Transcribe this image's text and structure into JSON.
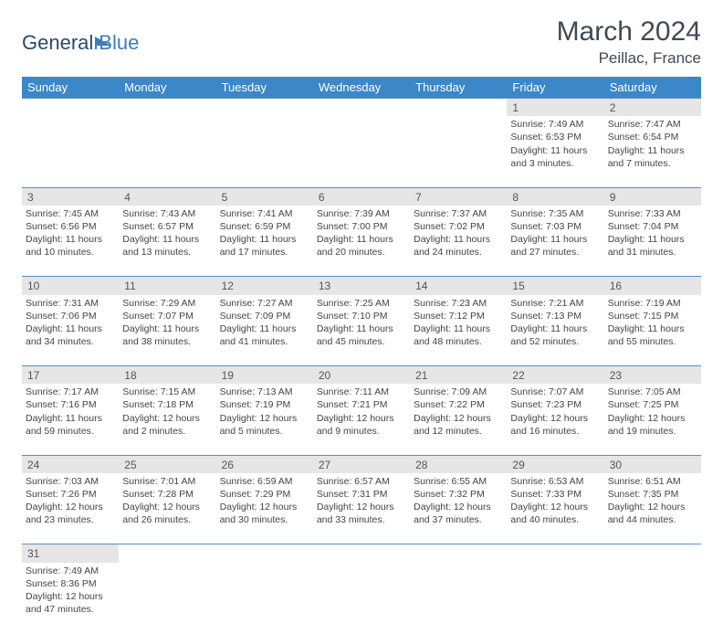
{
  "logo": {
    "text1": "General",
    "text2": "Blue",
    "color1": "#2b4a6b",
    "color2": "#3b7dbf"
  },
  "header": {
    "month_title": "March 2024",
    "location": "Peillac, France"
  },
  "colors": {
    "header_bg": "#3b87c8",
    "header_text": "#ffffff",
    "daynum_bg": "#e6e6e6",
    "row_border": "#5a8fc4",
    "body_text": "#444444",
    "page_bg": "#ffffff"
  },
  "typography": {
    "title_fontsize": 30,
    "location_fontsize": 17,
    "dayheader_fontsize": 13,
    "cell_fontsize": 10.5
  },
  "calendar": {
    "type": "table",
    "day_names": [
      "Sunday",
      "Monday",
      "Tuesday",
      "Wednesday",
      "Thursday",
      "Friday",
      "Saturday"
    ],
    "weeks": [
      [
        null,
        null,
        null,
        null,
        null,
        {
          "n": "1",
          "sunrise": "Sunrise: 7:49 AM",
          "sunset": "Sunset: 6:53 PM",
          "daylight": "Daylight: 11 hours and 3 minutes."
        },
        {
          "n": "2",
          "sunrise": "Sunrise: 7:47 AM",
          "sunset": "Sunset: 6:54 PM",
          "daylight": "Daylight: 11 hours and 7 minutes."
        }
      ],
      [
        {
          "n": "3",
          "sunrise": "Sunrise: 7:45 AM",
          "sunset": "Sunset: 6:56 PM",
          "daylight": "Daylight: 11 hours and 10 minutes."
        },
        {
          "n": "4",
          "sunrise": "Sunrise: 7:43 AM",
          "sunset": "Sunset: 6:57 PM",
          "daylight": "Daylight: 11 hours and 13 minutes."
        },
        {
          "n": "5",
          "sunrise": "Sunrise: 7:41 AM",
          "sunset": "Sunset: 6:59 PM",
          "daylight": "Daylight: 11 hours and 17 minutes."
        },
        {
          "n": "6",
          "sunrise": "Sunrise: 7:39 AM",
          "sunset": "Sunset: 7:00 PM",
          "daylight": "Daylight: 11 hours and 20 minutes."
        },
        {
          "n": "7",
          "sunrise": "Sunrise: 7:37 AM",
          "sunset": "Sunset: 7:02 PM",
          "daylight": "Daylight: 11 hours and 24 minutes."
        },
        {
          "n": "8",
          "sunrise": "Sunrise: 7:35 AM",
          "sunset": "Sunset: 7:03 PM",
          "daylight": "Daylight: 11 hours and 27 minutes."
        },
        {
          "n": "9",
          "sunrise": "Sunrise: 7:33 AM",
          "sunset": "Sunset: 7:04 PM",
          "daylight": "Daylight: 11 hours and 31 minutes."
        }
      ],
      [
        {
          "n": "10",
          "sunrise": "Sunrise: 7:31 AM",
          "sunset": "Sunset: 7:06 PM",
          "daylight": "Daylight: 11 hours and 34 minutes."
        },
        {
          "n": "11",
          "sunrise": "Sunrise: 7:29 AM",
          "sunset": "Sunset: 7:07 PM",
          "daylight": "Daylight: 11 hours and 38 minutes."
        },
        {
          "n": "12",
          "sunrise": "Sunrise: 7:27 AM",
          "sunset": "Sunset: 7:09 PM",
          "daylight": "Daylight: 11 hours and 41 minutes."
        },
        {
          "n": "13",
          "sunrise": "Sunrise: 7:25 AM",
          "sunset": "Sunset: 7:10 PM",
          "daylight": "Daylight: 11 hours and 45 minutes."
        },
        {
          "n": "14",
          "sunrise": "Sunrise: 7:23 AM",
          "sunset": "Sunset: 7:12 PM",
          "daylight": "Daylight: 11 hours and 48 minutes."
        },
        {
          "n": "15",
          "sunrise": "Sunrise: 7:21 AM",
          "sunset": "Sunset: 7:13 PM",
          "daylight": "Daylight: 11 hours and 52 minutes."
        },
        {
          "n": "16",
          "sunrise": "Sunrise: 7:19 AM",
          "sunset": "Sunset: 7:15 PM",
          "daylight": "Daylight: 11 hours and 55 minutes."
        }
      ],
      [
        {
          "n": "17",
          "sunrise": "Sunrise: 7:17 AM",
          "sunset": "Sunset: 7:16 PM",
          "daylight": "Daylight: 11 hours and 59 minutes."
        },
        {
          "n": "18",
          "sunrise": "Sunrise: 7:15 AM",
          "sunset": "Sunset: 7:18 PM",
          "daylight": "Daylight: 12 hours and 2 minutes."
        },
        {
          "n": "19",
          "sunrise": "Sunrise: 7:13 AM",
          "sunset": "Sunset: 7:19 PM",
          "daylight": "Daylight: 12 hours and 5 minutes."
        },
        {
          "n": "20",
          "sunrise": "Sunrise: 7:11 AM",
          "sunset": "Sunset: 7:21 PM",
          "daylight": "Daylight: 12 hours and 9 minutes."
        },
        {
          "n": "21",
          "sunrise": "Sunrise: 7:09 AM",
          "sunset": "Sunset: 7:22 PM",
          "daylight": "Daylight: 12 hours and 12 minutes."
        },
        {
          "n": "22",
          "sunrise": "Sunrise: 7:07 AM",
          "sunset": "Sunset: 7:23 PM",
          "daylight": "Daylight: 12 hours and 16 minutes."
        },
        {
          "n": "23",
          "sunrise": "Sunrise: 7:05 AM",
          "sunset": "Sunset: 7:25 PM",
          "daylight": "Daylight: 12 hours and 19 minutes."
        }
      ],
      [
        {
          "n": "24",
          "sunrise": "Sunrise: 7:03 AM",
          "sunset": "Sunset: 7:26 PM",
          "daylight": "Daylight: 12 hours and 23 minutes."
        },
        {
          "n": "25",
          "sunrise": "Sunrise: 7:01 AM",
          "sunset": "Sunset: 7:28 PM",
          "daylight": "Daylight: 12 hours and 26 minutes."
        },
        {
          "n": "26",
          "sunrise": "Sunrise: 6:59 AM",
          "sunset": "Sunset: 7:29 PM",
          "daylight": "Daylight: 12 hours and 30 minutes."
        },
        {
          "n": "27",
          "sunrise": "Sunrise: 6:57 AM",
          "sunset": "Sunset: 7:31 PM",
          "daylight": "Daylight: 12 hours and 33 minutes."
        },
        {
          "n": "28",
          "sunrise": "Sunrise: 6:55 AM",
          "sunset": "Sunset: 7:32 PM",
          "daylight": "Daylight: 12 hours and 37 minutes."
        },
        {
          "n": "29",
          "sunrise": "Sunrise: 6:53 AM",
          "sunset": "Sunset: 7:33 PM",
          "daylight": "Daylight: 12 hours and 40 minutes."
        },
        {
          "n": "30",
          "sunrise": "Sunrise: 6:51 AM",
          "sunset": "Sunset: 7:35 PM",
          "daylight": "Daylight: 12 hours and 44 minutes."
        }
      ],
      [
        {
          "n": "31",
          "sunrise": "Sunrise: 7:49 AM",
          "sunset": "Sunset: 8:36 PM",
          "daylight": "Daylight: 12 hours and 47 minutes."
        },
        null,
        null,
        null,
        null,
        null,
        null
      ]
    ]
  }
}
